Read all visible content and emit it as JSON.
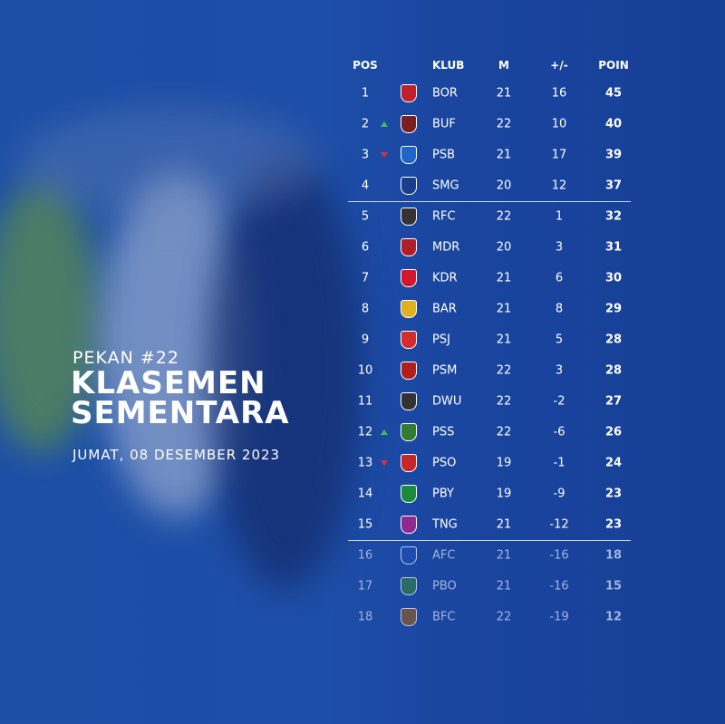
{
  "header": {
    "kicker": "PEKAN #22",
    "title_line1": "KLASEMEN",
    "title_line2": "SEMENTARA",
    "date": "JUMAT, 08 DESEMBER 2023"
  },
  "table": {
    "columns": [
      "POS",
      "KLUB",
      "M",
      "+/-",
      "POIN"
    ],
    "rows": [
      {
        "pos": 1,
        "club": "BOR",
        "m": 21,
        "gd": 16,
        "pts": 45
      },
      {
        "pos": 2,
        "club": "BUF",
        "m": 22,
        "gd": 10,
        "pts": 40,
        "trend": "up"
      },
      {
        "pos": 3,
        "club": "PSB",
        "m": 21,
        "gd": 17,
        "pts": 39,
        "trend": "down"
      },
      {
        "pos": 4,
        "club": "SMG",
        "m": 20,
        "gd": 12,
        "pts": 37
      },
      {
        "pos": 5,
        "club": "RFC",
        "m": 22,
        "gd": 1,
        "pts": 32
      },
      {
        "pos": 6,
        "club": "MDR",
        "m": 20,
        "gd": 3,
        "pts": 31
      },
      {
        "pos": 7,
        "club": "KDR",
        "m": 21,
        "gd": 6,
        "pts": 30
      },
      {
        "pos": 8,
        "club": "BAR",
        "m": 21,
        "gd": 8,
        "pts": 29
      },
      {
        "pos": 9,
        "club": "PSJ",
        "m": 21,
        "gd": 5,
        "pts": 28
      },
      {
        "pos": 10,
        "club": "PSM",
        "m": 22,
        "gd": 3,
        "pts": 28
      },
      {
        "pos": 11,
        "club": "DWU",
        "m": 22,
        "gd": -2,
        "pts": 27
      },
      {
        "pos": 12,
        "club": "PSS",
        "m": 22,
        "gd": -6,
        "pts": 26,
        "trend": "up"
      },
      {
        "pos": 13,
        "club": "PSO",
        "m": 19,
        "gd": -1,
        "pts": 24,
        "trend": "down"
      },
      {
        "pos": 14,
        "club": "PBY",
        "m": 19,
        "gd": -9,
        "pts": 23
      },
      {
        "pos": 15,
        "club": "TNG",
        "m": 21,
        "gd": -12,
        "pts": 23
      },
      {
        "pos": 16,
        "club": "AFC",
        "m": 21,
        "gd": -16,
        "pts": 18
      },
      {
        "pos": 17,
        "club": "PBO",
        "m": 21,
        "gd": -16,
        "pts": 15
      },
      {
        "pos": 18,
        "club": "BFC",
        "m": 22,
        "gd": -19,
        "pts": 12
      }
    ]
  }
}
